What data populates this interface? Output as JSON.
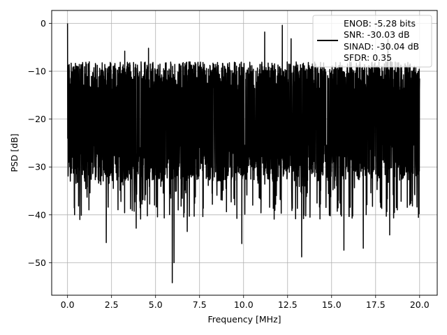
{
  "chart_data": {
    "type": "line",
    "title": "",
    "xlabel": "Frequency [MHz]",
    "ylabel": "PSD [dB]",
    "xlim": [
      -0.9,
      21.0
    ],
    "ylim": [
      -56.8,
      2.7
    ],
    "xticks": [
      0.0,
      2.5,
      5.0,
      7.5,
      10.0,
      12.5,
      15.0,
      17.5,
      20.0
    ],
    "xtick_labels": [
      "0.0",
      "2.5",
      "5.0",
      "7.5",
      "10.0",
      "12.5",
      "15.0",
      "17.5",
      "20.0"
    ],
    "yticks": [
      0,
      -10,
      -20,
      -30,
      -40,
      -50
    ],
    "ytick_labels": [
      "0",
      "−10",
      "−20",
      "−30",
      "−40",
      "−50"
    ],
    "grid": true,
    "legend_placement": "top-right",
    "series": [
      {
        "name": "",
        "color": "#000000",
        "x_range": [
          0.0,
          20.0
        ],
        "typical_band": [
          -33,
          -8
        ],
        "peak": {
          "x": 0.0,
          "y": 0.0
        },
        "notable_highs": [
          {
            "x": 3.25,
            "y": -5.8
          },
          {
            "x": 4.6,
            "y": -5.2
          },
          {
            "x": 11.2,
            "y": -1.8
          },
          {
            "x": 12.2,
            "y": -0.4
          },
          {
            "x": 12.7,
            "y": -3.2
          },
          {
            "x": 18.2,
            "y": -3.3
          }
        ],
        "notable_lows": [
          {
            "x": 0.4,
            "y": -40.0
          },
          {
            "x": 0.7,
            "y": -41.0
          },
          {
            "x": 2.2,
            "y": -45.8
          },
          {
            "x": 3.9,
            "y": -42.8
          },
          {
            "x": 5.95,
            "y": -54.2
          },
          {
            "x": 6.05,
            "y": -50.0
          },
          {
            "x": 6.8,
            "y": -43.5
          },
          {
            "x": 9.9,
            "y": -46.0
          },
          {
            "x": 13.3,
            "y": -48.8
          },
          {
            "x": 15.7,
            "y": -47.4
          },
          {
            "x": 16.8,
            "y": -47.0
          },
          {
            "x": 18.3,
            "y": -44.2
          }
        ]
      }
    ],
    "legend_entries": [
      "ENOB: -5.28 bits",
      "SNR: -30.03 dB",
      "SINAD: -30.04 dB",
      "SFDR: 0.35"
    ]
  },
  "colors": {
    "line": "#000000",
    "grid": "#b0b0b0",
    "axes": "#000000",
    "legend_bg": "#ffffff",
    "legend_edge": "#cccccc"
  }
}
